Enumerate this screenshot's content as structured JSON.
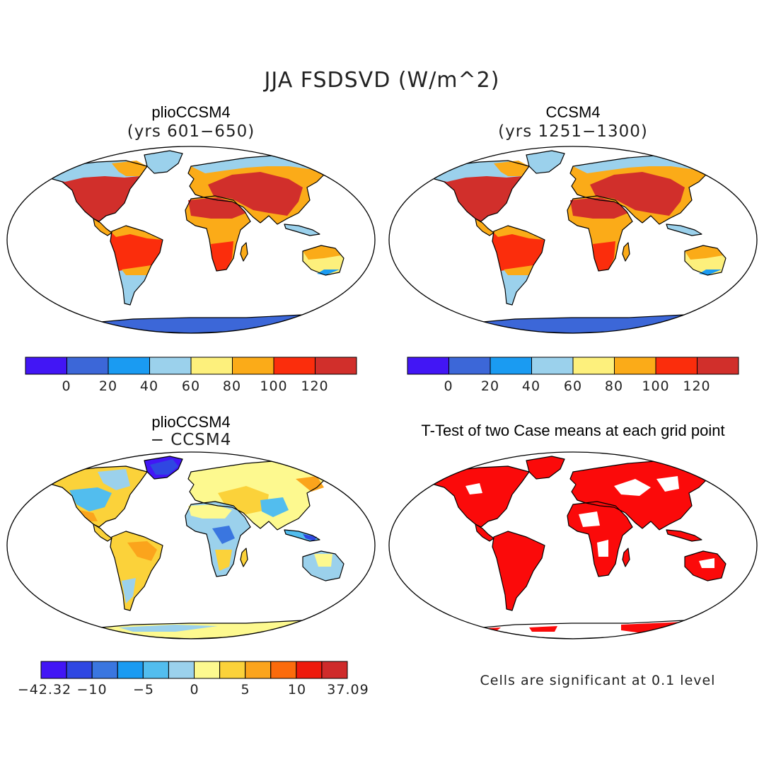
{
  "figure_title": "JJA FSDSVD (W/m^2)",
  "panels": {
    "top_left": {
      "title": "plioCCSM4",
      "subtitle": "(yrs 601−650)"
    },
    "top_right": {
      "title": "CCSM4",
      "subtitle": "(yrs 1251−1300)"
    },
    "bottom_left": {
      "title": "plioCCSM4",
      "subtitle": "− CCSM4"
    },
    "bottom_right": {
      "title": "T-Test of two Case means at each grid point"
    }
  },
  "colorbar_abs": {
    "labels": [
      "0",
      "20",
      "40",
      "60",
      "80",
      "100",
      "120"
    ],
    "colors": [
      "#4216f5",
      "#3c67d8",
      "#1a9bf2",
      "#9bd1ec",
      "#fdf07c",
      "#fbab18",
      "#fb2d0c",
      "#d12f2b"
    ]
  },
  "colorbar_diff": {
    "labels": [
      "−42.32",
      "−10",
      "−5",
      "0",
      "5",
      "10",
      "37.09"
    ],
    "colors": [
      "#4216f5",
      "#2f47e2",
      "#3a76e0",
      "#1a9bf2",
      "#52bdee",
      "#9bd1ec",
      "#fdf98f",
      "#fbd23a",
      "#fba41c",
      "#fb6b0c",
      "#ee1a0c",
      "#cf2b2b"
    ]
  },
  "significance_note": "Cells are significant at 0.1 level",
  "colors": {
    "ocean": "#ffffff",
    "antarctica_abs": "#3c67d8",
    "antarctica_diff": "#fdf98f",
    "significant": "#fb0a0a",
    "coast": "#000000"
  }
}
